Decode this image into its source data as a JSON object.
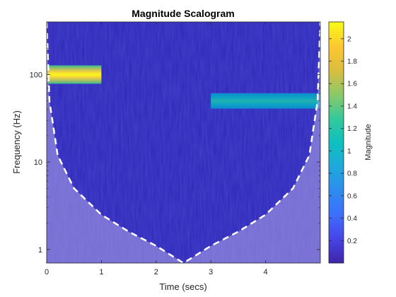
{
  "chart_data": {
    "type": "heatmap",
    "title": "Magnitude Scalogram",
    "xlabel": "Time (secs)",
    "ylabel": "Frequency (Hz)",
    "colorbar_label": "Magnitude",
    "colormap": "parula",
    "xlim": [
      0,
      5
    ],
    "ylim": [
      0.7,
      400
    ],
    "yscale": "log",
    "xticks": [
      0,
      1,
      2,
      3,
      4
    ],
    "yticks": [
      1,
      10,
      100
    ],
    "clim": [
      0,
      2.15
    ],
    "colorbar_ticks": [
      0.2,
      0.4,
      0.6,
      0.8,
      1,
      1.2,
      1.4,
      1.6,
      1.8,
      2
    ],
    "background_magnitude": 0.1,
    "features": [
      {
        "kind": "tone",
        "t_start": 0,
        "t_end": 1,
        "frequency_hz": 100,
        "magnitude": 2.1
      },
      {
        "kind": "tone",
        "t_start": 3,
        "t_end": 5,
        "frequency_hz": 50,
        "magnitude": 1.0
      }
    ],
    "cone_of_influence": {
      "style": "white dashed",
      "shaded": true,
      "points": [
        {
          "t": 0.0,
          "f": 400
        },
        {
          "t": 0.05,
          "f": 50
        },
        {
          "t": 0.2,
          "f": 12
        },
        {
          "t": 0.5,
          "f": 5
        },
        {
          "t": 1.0,
          "f": 2.5
        },
        {
          "t": 1.5,
          "f": 1.6
        },
        {
          "t": 2.0,
          "f": 1.1
        },
        {
          "t": 2.5,
          "f": 0.7
        },
        {
          "t": 3.0,
          "f": 1.1
        },
        {
          "t": 3.5,
          "f": 1.6
        },
        {
          "t": 4.0,
          "f": 2.5
        },
        {
          "t": 4.5,
          "f": 5
        },
        {
          "t": 4.8,
          "f": 12
        },
        {
          "t": 4.95,
          "f": 50
        },
        {
          "t": 5.0,
          "f": 400
        }
      ]
    }
  }
}
